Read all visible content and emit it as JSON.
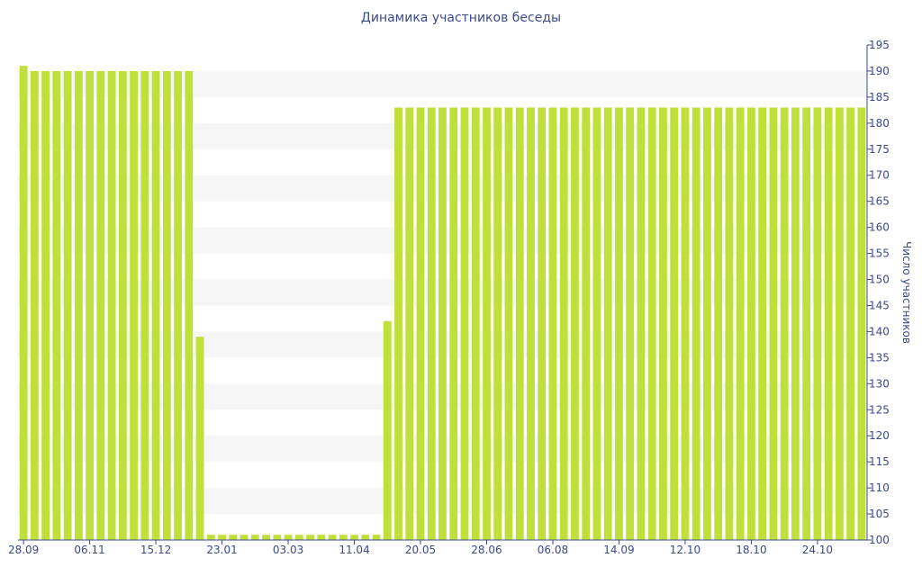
{
  "chart_data": {
    "type": "bar",
    "title": "Динамика участников беседы",
    "xlabel": "",
    "ylabel": "Число участников",
    "ylim": [
      100,
      195
    ],
    "yticks": [
      100,
      105,
      110,
      115,
      120,
      125,
      130,
      135,
      140,
      145,
      150,
      155,
      160,
      165,
      170,
      175,
      180,
      185,
      190,
      195
    ],
    "y_axis_position": "right",
    "grid": "alternating horizontal bands",
    "colors": {
      "bar": "#bfe03a",
      "text": "#3b4a8a",
      "axis": "#3b4a8a",
      "band": "#f6f6f6"
    },
    "x_tick_labels": [
      {
        "label": "28.09",
        "index": 0
      },
      {
        "label": "06.11",
        "index": 6
      },
      {
        "label": "15.12",
        "index": 12
      },
      {
        "label": "23.01",
        "index": 18
      },
      {
        "label": "03.03",
        "index": 24
      },
      {
        "label": "11.04",
        "index": 30
      },
      {
        "label": "20.05",
        "index": 36
      },
      {
        "label": "28.06",
        "index": 42
      },
      {
        "label": "06.08",
        "index": 48
      },
      {
        "label": "14.09",
        "index": 54
      },
      {
        "label": "12.10",
        "index": 60
      },
      {
        "label": "18.10",
        "index": 66
      },
      {
        "label": "24.10",
        "index": 72
      }
    ],
    "values": [
      191,
      190,
      190,
      190,
      190,
      190,
      190,
      190,
      190,
      190,
      190,
      190,
      190,
      190,
      190,
      190,
      139,
      101,
      101,
      101,
      101,
      101,
      101,
      101,
      101,
      101,
      101,
      101,
      101,
      101,
      101,
      101,
      101,
      142,
      183,
      183,
      183,
      183,
      183,
      183,
      183,
      183,
      183,
      183,
      183,
      183,
      183,
      183,
      183,
      183,
      183,
      183,
      183,
      183,
      183,
      183,
      183,
      183,
      183,
      183,
      183,
      183,
      183,
      183,
      183,
      183,
      183,
      183,
      183,
      183,
      183,
      183,
      183,
      183,
      183,
      183,
      183
    ]
  }
}
